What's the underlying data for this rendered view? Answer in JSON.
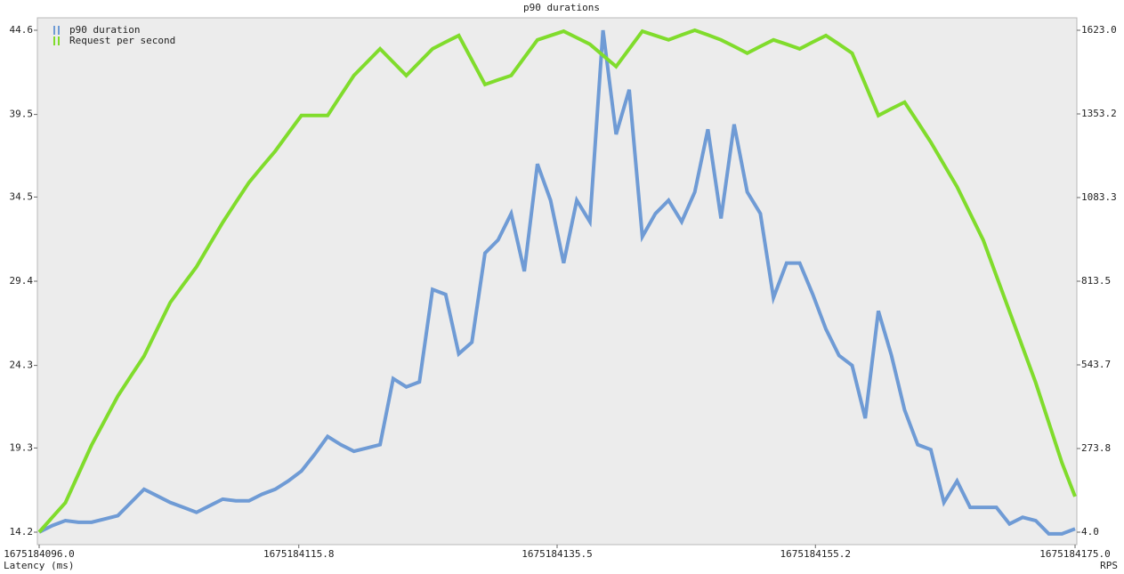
{
  "chart_data": {
    "type": "line",
    "title": "p90 durations",
    "xlabel": "Latency (ms)",
    "y2label": "RPS",
    "x": [
      1675184096,
      1675184097,
      1675184098,
      1675184099,
      1675184100,
      1675184101,
      1675184102,
      1675184103,
      1675184104,
      1675184105,
      1675184106,
      1675184107,
      1675184108,
      1675184109,
      1675184110,
      1675184111,
      1675184112,
      1675184113,
      1675184114,
      1675184115,
      1675184116,
      1675184117,
      1675184118,
      1675184119,
      1675184120,
      1675184121,
      1675184122,
      1675184123,
      1675184124,
      1675184125,
      1675184126,
      1675184127,
      1675184128,
      1675184129,
      1675184130,
      1675184131,
      1675184132,
      1675184133,
      1675184134,
      1675184135,
      1675184136,
      1675184137,
      1675184138,
      1675184139,
      1675184140,
      1675184141,
      1675184142,
      1675184143,
      1675184144,
      1675184145,
      1675184146,
      1675184147,
      1675184148,
      1675184149,
      1675184150,
      1675184151,
      1675184152,
      1675184153,
      1675184154,
      1675184155,
      1675184156,
      1675184157,
      1675184158,
      1675184159,
      1675184160,
      1675184161,
      1675184162,
      1675184163,
      1675184164,
      1675184165,
      1675184166,
      1675184167,
      1675184168,
      1675184169,
      1675184170,
      1675184171,
      1675184172,
      1675184173,
      1675184174,
      1675184175
    ],
    "series": [
      {
        "name": "p90 duration",
        "color": "#6f9bd5",
        "values": [
          14.2,
          14.6,
          14.9,
          14.8,
          14.8,
          15.0,
          15.2,
          16.0,
          16.8,
          16.4,
          16.0,
          15.7,
          15.4,
          15.8,
          16.2,
          16.1,
          16.1,
          16.5,
          16.8,
          17.3,
          17.9,
          18.9,
          20.0,
          19.5,
          19.1,
          19.3,
          19.5,
          23.5,
          23.0,
          23.3,
          28.9,
          28.6,
          25.0,
          25.7,
          31.1,
          31.9,
          33.5,
          30.0,
          36.5,
          34.3,
          30.5,
          34.3,
          33.0,
          44.6,
          38.3,
          41.0,
          32.1,
          33.5,
          34.3,
          33.0,
          34.8,
          38.6,
          33.2,
          38.9,
          34.8,
          33.5,
          28.4,
          30.5,
          30.5,
          28.6,
          26.5,
          24.9,
          24.3,
          21.1,
          27.6,
          24.9,
          21.6,
          19.5,
          19.2,
          16.0,
          17.3,
          15.7,
          15.7,
          15.7,
          14.7,
          15.1,
          14.9,
          14.1,
          14.1,
          14.4
        ]
      },
      {
        "name": "Request per second",
        "color": "#80dc2c",
        "axis": "y2",
        "values": [
          4,
          52,
          99,
          192,
          285,
          364,
          443,
          508,
          572,
          659,
          745,
          803,
          860,
          932,
          1003,
          1068,
          1132,
          1183,
          1233,
          1291,
          1348,
          1348,
          1348,
          1413,
          1477,
          1520,
          1563,
          1520,
          1477,
          1520,
          1563,
          1585,
          1606,
          1527,
          1448,
          1463,
          1477,
          1535,
          1592,
          1606,
          1620,
          1599,
          1578,
          1542,
          1506,
          1563,
          1620,
          1606,
          1592,
          1608,
          1623,
          1608,
          1592,
          1571,
          1549,
          1571,
          1592,
          1578,
          1563,
          1585,
          1606,
          1578,
          1549,
          1449,
          1348,
          1370,
          1391,
          1327,
          1262,
          1190,
          1118,
          1032,
          946,
          831,
          716,
          601,
          486,
          357,
          228,
          119
        ]
      }
    ],
    "xlim": [
      1675184096.0,
      1675184175.0
    ],
    "xticks": [
      {
        "value": 1675184096.0,
        "label": "1675184096.0"
      },
      {
        "value": 1675184115.8,
        "label": "1675184115.8"
      },
      {
        "value": 1675184135.5,
        "label": "1675184135.5"
      },
      {
        "value": 1675184155.2,
        "label": "1675184155.2"
      },
      {
        "value": 1675184175.0,
        "label": "1675184175.0"
      }
    ],
    "ylim": [
      14.2,
      44.6
    ],
    "yticks": [
      14.2,
      19.3,
      24.3,
      29.4,
      34.5,
      39.5,
      44.6
    ],
    "y2lim": [
      4.0,
      1623.0
    ],
    "y2ticks": [
      {
        "value": 4.0,
        "label": "4.0"
      },
      273.8,
      543.7,
      813.5,
      1083.3,
      1353.2,
      {
        "value": 1623.0,
        "label": "1623.0"
      }
    ],
    "legend": "top-left"
  }
}
